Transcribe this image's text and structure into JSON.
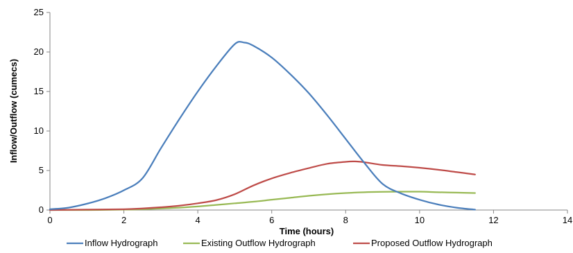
{
  "chart_data": {
    "type": "line",
    "title": "",
    "xlabel": "Time (hours)",
    "ylabel": "Inflow/Outflow (cumecs)",
    "xlim": [
      0,
      14
    ],
    "ylim": [
      0,
      25
    ],
    "xticks": [
      0,
      2,
      4,
      6,
      8,
      10,
      12,
      14
    ],
    "yticks": [
      0,
      5,
      10,
      15,
      20,
      25
    ],
    "grid": false,
    "legend": "bottom",
    "series": [
      {
        "name": "Inflow Hydrograph",
        "color": "#4a7ebb",
        "x": [
          0,
          0.5,
          1,
          1.5,
          2,
          2.5,
          3,
          3.5,
          4,
          4.5,
          5,
          5.25,
          5.5,
          6,
          6.5,
          7,
          7.5,
          8,
          8.5,
          9,
          9.5,
          10,
          10.5,
          11,
          11.5
        ],
        "y": [
          0.1,
          0.3,
          0.8,
          1.5,
          2.5,
          4.0,
          7.8,
          11.5,
          15.0,
          18.2,
          21.0,
          21.2,
          20.8,
          19.3,
          17.2,
          14.8,
          12.0,
          9.0,
          6.0,
          3.3,
          2.1,
          1.3,
          0.7,
          0.3,
          0.05
        ]
      },
      {
        "name": "Existing Outflow Hydrograph",
        "color": "#98b954",
        "x": [
          0,
          1,
          2,
          2.5,
          3,
          3.5,
          4,
          4.5,
          5,
          5.5,
          6,
          6.5,
          7,
          7.5,
          8,
          8.5,
          9,
          9.5,
          10,
          10.5,
          11,
          11.5
        ],
        "y": [
          0,
          0,
          0.05,
          0.1,
          0.2,
          0.3,
          0.45,
          0.65,
          0.85,
          1.05,
          1.3,
          1.55,
          1.8,
          2.0,
          2.15,
          2.25,
          2.3,
          2.32,
          2.32,
          2.25,
          2.2,
          2.15
        ]
      },
      {
        "name": "Proposed Outflow Hydrograph",
        "color": "#be4b48",
        "x": [
          0,
          1,
          2,
          2.5,
          3,
          3.5,
          4,
          4.5,
          5,
          5.5,
          6,
          6.5,
          7,
          7.5,
          8,
          8.25,
          8.5,
          9,
          9.5,
          10,
          10.5,
          11,
          11.5
        ],
        "y": [
          0,
          0.05,
          0.1,
          0.2,
          0.35,
          0.55,
          0.85,
          1.25,
          2.0,
          3.1,
          4.0,
          4.7,
          5.3,
          5.85,
          6.1,
          6.15,
          6.05,
          5.7,
          5.55,
          5.35,
          5.1,
          4.8,
          4.5
        ]
      }
    ]
  }
}
